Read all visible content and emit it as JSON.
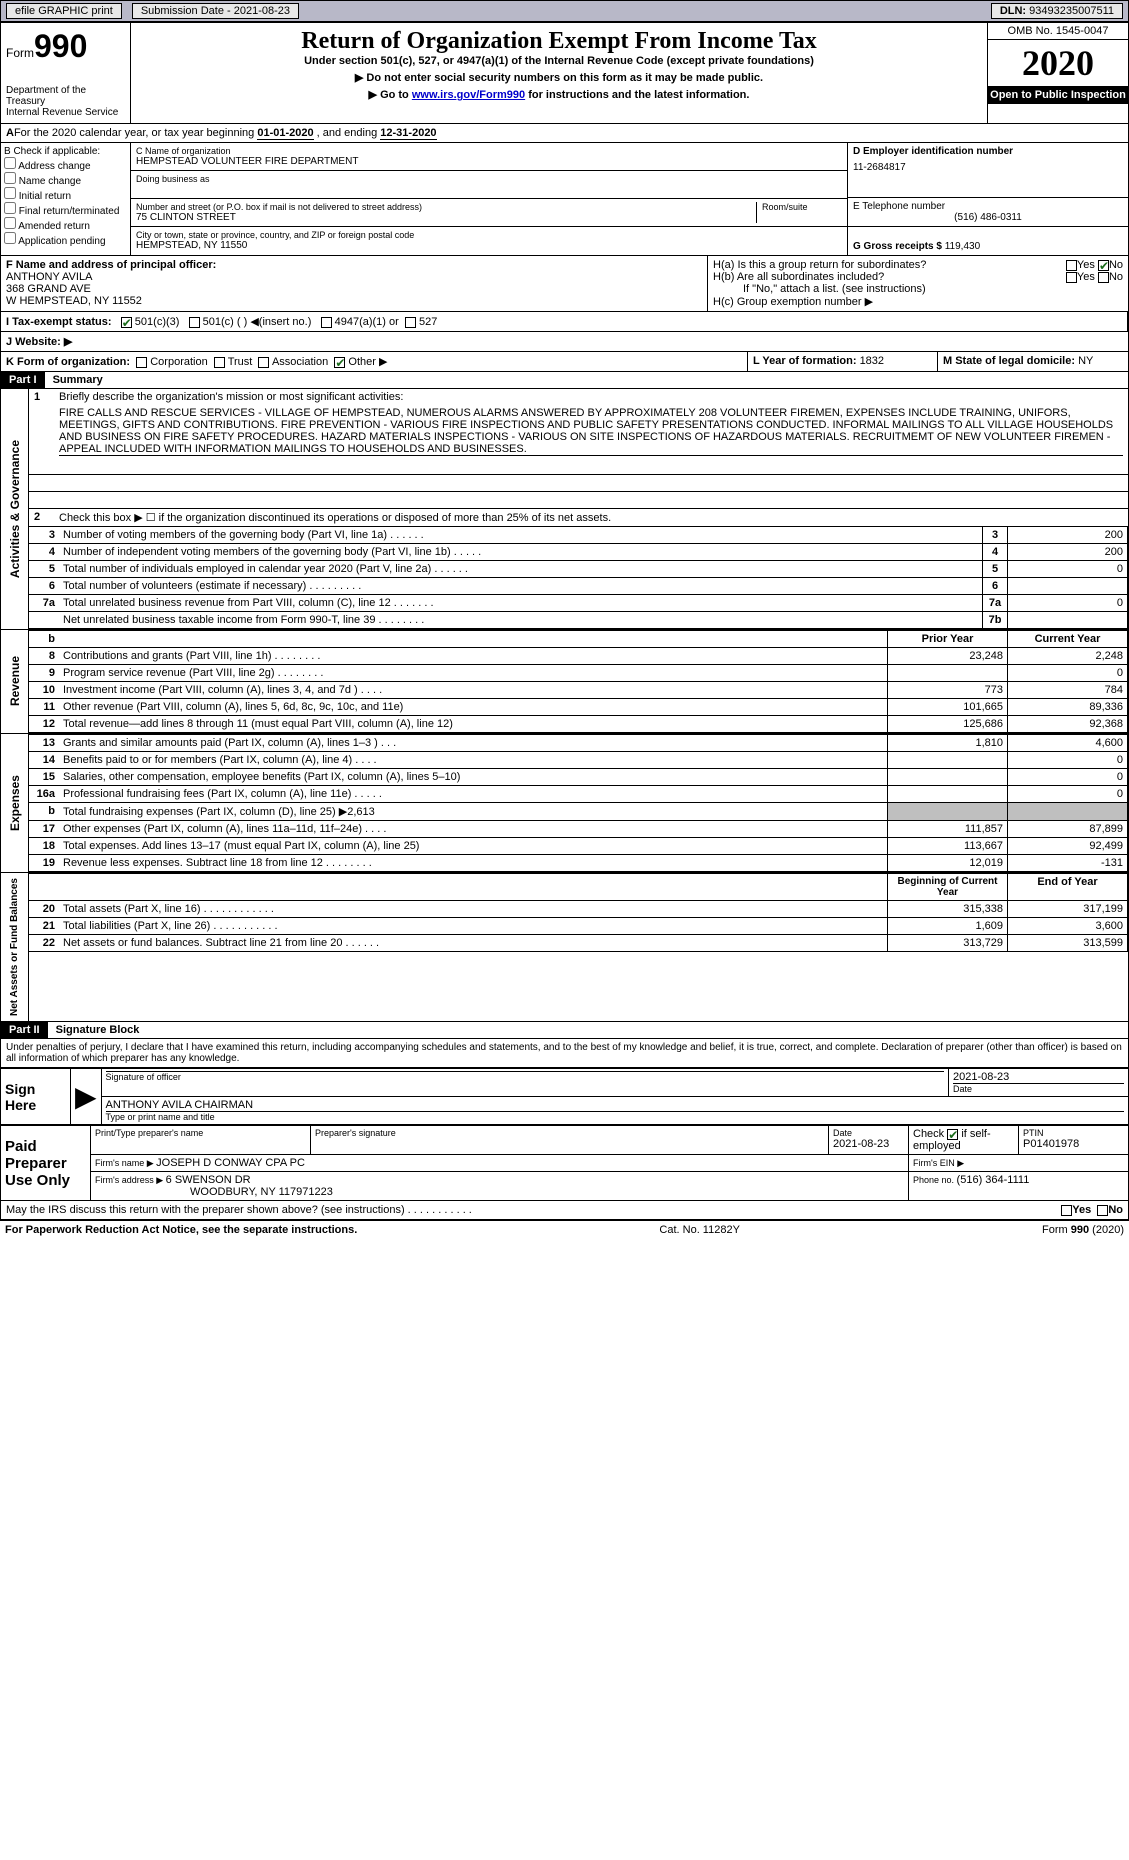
{
  "topbar": {
    "efile": "efile GRAPHIC print",
    "submission_label": "Submission Date - ",
    "submission_date": "2021-08-23",
    "dln_label": "DLN: ",
    "dln": "93493235007511"
  },
  "header": {
    "form_word": "Form",
    "form_num": "990",
    "dept": "Department of the Treasury",
    "irs": "Internal Revenue Service",
    "title": "Return of Organization Exempt From Income Tax",
    "sub1": "Under section 501(c), 527, or 4947(a)(1) of the Internal Revenue Code (except private foundations)",
    "sub2": "▶ Do not enter social security numbers on this form as it may be made public.",
    "sub3_pre": "▶ Go to ",
    "sub3_link": "www.irs.gov/Form990",
    "sub3_post": " for instructions and the latest information.",
    "omb": "OMB No. 1545-0047",
    "year": "2020",
    "open": "Open to Public Inspection"
  },
  "sec_a": {
    "a_pre": "For the 2020 calendar year, or tax year beginning ",
    "a_begin": "01-01-2020",
    "a_mid": "  , and ending ",
    "a_end": "12-31-2020"
  },
  "sec_b": {
    "label": "B Check if applicable:",
    "addr": "Address change",
    "name": "Name change",
    "init": "Initial return",
    "final": "Final return/terminated",
    "amend": "Amended return",
    "app": "Application pending"
  },
  "sec_c": {
    "name_label": "C Name of organization",
    "name": "HEMPSTEAD VOLUNTEER FIRE DEPARTMENT",
    "dba": "Doing business as",
    "addr_label": "Number and street (or P.O. box if mail is not delivered to street address)",
    "addr": "75 CLINTON STREET",
    "room": "Room/suite",
    "city_label": "City or town, state or province, country, and ZIP or foreign postal code",
    "city": "HEMPSTEAD, NY  11550"
  },
  "sec_d": {
    "label": "D Employer identification number",
    "ein": "11-2684817"
  },
  "sec_e": {
    "label": "E Telephone number",
    "val": "(516) 486-0311"
  },
  "sec_g": {
    "label": "G Gross receipts $ ",
    "val": "119,430"
  },
  "sec_f": {
    "label": "F Name and address of principal officer:",
    "name": "ANTHONY AVILA",
    "addr1": "368 GRAND AVE",
    "addr2": "W HEMPSTEAD, NY  11552"
  },
  "sec_h": {
    "ha": "H(a)  Is this a group return for subordinates?",
    "hb": "H(b)  Are all subordinates included?",
    "hb_note": "If \"No,\" attach a list. (see instructions)",
    "hc": "H(c)  Group exemption number ▶",
    "yes": "Yes",
    "no": "No"
  },
  "sec_i": {
    "label": "I  Tax-exempt status:",
    "o1": "501(c)(3)",
    "o2": "501(c) (  ) ◀(insert no.)",
    "o3": "4947(a)(1) or",
    "o4": "527"
  },
  "sec_j": {
    "label": "J  Website: ▶"
  },
  "sec_k": {
    "label": "K Form of organization:",
    "o1": "Corporation",
    "o2": "Trust",
    "o3": "Association",
    "o4": "Other ▶"
  },
  "sec_l": {
    "label": "L Year of formation: ",
    "val": "1832"
  },
  "sec_m": {
    "label": "M State of legal domicile: ",
    "val": "NY"
  },
  "part1": {
    "hdr": "Part I",
    "title": "Summary",
    "l1": "Briefly describe the organization's mission or most significant activities:",
    "mission": "FIRE CALLS AND RESCUE SERVICES - VILLAGE OF HEMPSTEAD, NUMEROUS ALARMS ANSWERED BY APPROXIMATELY 208 VOLUNTEER FIREMEN, EXPENSES INCLUDE TRAINING, UNIFORS, MEETINGS, GIFTS AND CONTRIBUTIONS. FIRE PREVENTION - VARIOUS FIRE INSPECTIONS AND PUBLIC SAFETY PRESENTATIONS CONDUCTED. INFORMAL MAILINGS TO ALL VILLAGE HOUSEHOLDS AND BUSINESS ON FIRE SAFETY PROCEDURES. HAZARD MATERIALS INSPECTIONS - VARIOUS ON SITE INSPECTIONS OF HAZARDOUS MATERIALS. RECRUITMEMT OF NEW VOLUNTEER FIREMEN - APPEAL INCLUDED WITH INFORMATION MAILINGS TO HOUSEHOLDS AND BUSINESSES.",
    "l2": "Check this box ▶ ☐ if the organization discontinued its operations or disposed of more than 25% of its net assets.",
    "rows_ag": [
      {
        "n": "3",
        "t": "Number of voting members of the governing body (Part VI, line 1a)   .    .    .    .    .    .",
        "c": "3",
        "v": "200"
      },
      {
        "n": "4",
        "t": "Number of independent voting members of the governing body (Part VI, line 1b)    .    .    .    .    .",
        "c": "4",
        "v": "200"
      },
      {
        "n": "5",
        "t": "Total number of individuals employed in calendar year 2020 (Part V, line 2a)    .    .    .    .    .    .",
        "c": "5",
        "v": "0"
      },
      {
        "n": "6",
        "t": "Total number of volunteers (estimate if necessary)    .    .    .    .    .    .    .    .    .",
        "c": "6",
        "v": ""
      },
      {
        "n": "7a",
        "t": "Total unrelated business revenue from Part VIII, column (C), line 12    .    .    .    .    .    .    .",
        "c": "7a",
        "v": "0"
      },
      {
        "n": "",
        "t": "Net unrelated business taxable income from Form 990-T, line 39    .    .    .    .    .    .    .    .",
        "c": "7b",
        "v": ""
      }
    ],
    "col_prior": "Prior Year",
    "col_curr": "Current Year",
    "rows_rev": [
      {
        "n": "b",
        "t": "",
        "p": "",
        "c": "",
        "hdr": true
      },
      {
        "n": "8",
        "t": "Contributions and grants (Part VIII, line 1h)    .    .    .    .    .    .    .    .",
        "p": "23,248",
        "c": "2,248"
      },
      {
        "n": "9",
        "t": "Program service revenue (Part VIII, line 2g)    .    .    .    .    .    .    .    .",
        "p": "",
        "c": "0"
      },
      {
        "n": "10",
        "t": "Investment income (Part VIII, column (A), lines 3, 4, and 7d )    .    .    .    .",
        "p": "773",
        "c": "784"
      },
      {
        "n": "11",
        "t": "Other revenue (Part VIII, column (A), lines 5, 6d, 8c, 9c, 10c, and 11e)",
        "p": "101,665",
        "c": "89,336"
      },
      {
        "n": "12",
        "t": "Total revenue—add lines 8 through 11 (must equal Part VIII, column (A), line 12)",
        "p": "125,686",
        "c": "92,368"
      }
    ],
    "rows_exp": [
      {
        "n": "13",
        "t": "Grants and similar amounts paid (Part IX, column (A), lines 1–3 )    .    .    .",
        "p": "1,810",
        "c": "4,600"
      },
      {
        "n": "14",
        "t": "Benefits paid to or for members (Part IX, column (A), line 4)    .    .    .    .",
        "p": "",
        "c": "0"
      },
      {
        "n": "15",
        "t": "Salaries, other compensation, employee benefits (Part IX, column (A), lines 5–10)",
        "p": "",
        "c": "0"
      },
      {
        "n": "16a",
        "t": "Professional fundraising fees (Part IX, column (A), line 11e)    .    .    .    .    .",
        "p": "",
        "c": "0"
      },
      {
        "n": "b",
        "t": "Total fundraising expenses (Part IX, column (D), line 25) ▶2,613",
        "p": "gray",
        "c": "gray"
      },
      {
        "n": "17",
        "t": "Other expenses (Part IX, column (A), lines 11a–11d, 11f–24e)    .    .    .    .",
        "p": "111,857",
        "c": "87,899"
      },
      {
        "n": "18",
        "t": "Total expenses. Add lines 13–17 (must equal Part IX, column (A), line 25)",
        "p": "113,667",
        "c": "92,499"
      },
      {
        "n": "19",
        "t": "Revenue less expenses. Subtract line 18 from line 12    .    .    .    .    .    .    .    .",
        "p": "12,019",
        "c": "-131"
      }
    ],
    "col_begin": "Beginning of Current Year",
    "col_end": "End of Year",
    "rows_net": [
      {
        "n": "20",
        "t": "Total assets (Part X, line 16)    .    .    .    .    .    .    .    .    .    .    .    .",
        "p": "315,338",
        "c": "317,199"
      },
      {
        "n": "21",
        "t": "Total liabilities (Part X, line 26)    .    .    .    .    .    .    .    .    .    .    .",
        "p": "1,609",
        "c": "3,600"
      },
      {
        "n": "22",
        "t": "Net assets or fund balances. Subtract line 21 from line 20    .    .    .    .    .    .",
        "p": "313,729",
        "c": "313,599"
      }
    ],
    "vert_ag": "Activities & Governance",
    "vert_rev": "Revenue",
    "vert_exp": "Expenses",
    "vert_net": "Net Assets or Fund Balances"
  },
  "part2": {
    "hdr": "Part II",
    "title": "Signature Block",
    "perjury": "Under penalties of perjury, I declare that I have examined this return, including accompanying schedules and statements, and to the best of my knowledge and belief, it is true, correct, and complete. Declaration of preparer (other than officer) is based on all information of which preparer has any knowledge.",
    "sign_here": "Sign Here",
    "sig_officer": "Signature of officer",
    "date": "Date",
    "sig_date": "2021-08-23",
    "name_title": "ANTHONY AVILA  CHAIRMAN",
    "type_name": "Type or print name and title",
    "paid": "Paid Preparer Use Only",
    "prep_name_lbl": "Print/Type preparer's name",
    "prep_sig_lbl": "Preparer's signature",
    "prep_date_lbl": "Date",
    "prep_date": "2021-08-23",
    "check_lbl": "Check ",
    "check_if": "if self-employed",
    "ptin_lbl": "PTIN",
    "ptin": "P01401978",
    "firm_name_lbl": "Firm's name    ▶ ",
    "firm_name": "JOSEPH D CONWAY CPA PC",
    "firm_ein_lbl": "Firm's EIN ▶",
    "firm_addr_lbl": "Firm's address ▶ ",
    "firm_addr1": "6 SWENSON DR",
    "firm_addr2": "WOODBURY, NY  117971223",
    "phone_lbl": "Phone no. ",
    "phone": "(516) 364-1111",
    "discuss": "May the IRS discuss this return with the preparer shown above? (see instructions)    .    .    .    .    .    .    .    .    .    .    .",
    "yes": "Yes",
    "no": "No"
  },
  "footer": {
    "l": "For Paperwork Reduction Act Notice, see the separate instructions.",
    "m": "Cat. No. 11282Y",
    "r": "Form 990 (2020)"
  }
}
